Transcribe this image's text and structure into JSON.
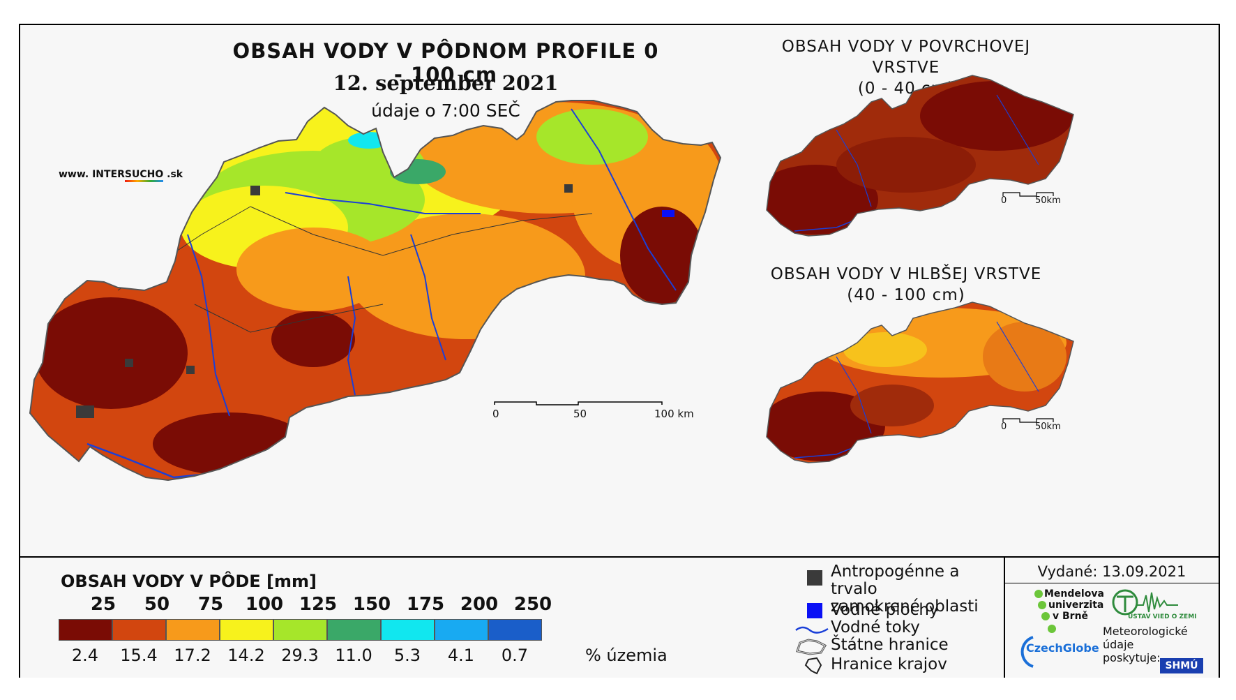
{
  "main_map": {
    "title": "OBSAH VODY V PÔDNOM PROFILE 0 - 100 cm",
    "date": "12. september 2021",
    "time": "údaje o 7:00 SEČ",
    "website": {
      "prefix": "www. INTER",
      "highlight": "SUCHO",
      "suffix": " .sk"
    },
    "scale": {
      "labels": [
        "0",
        "50",
        "100 km"
      ]
    }
  },
  "surface_map": {
    "title_line1": "OBSAH VODY V POVRCHOVEJ VRSTVE",
    "title_line2": "(0 - 40 cm)",
    "scale": {
      "labels": [
        "0",
        "50km"
      ]
    }
  },
  "deep_map": {
    "title_line1": "OBSAH VODY V HLBŠEJ VRSTVE",
    "title_line2": "(40 - 100 cm)",
    "scale": {
      "labels": [
        "0",
        "50km"
      ]
    }
  },
  "legend": {
    "title": "OBSAH VODY V PÔDE [mm]",
    "thresholds": [
      "25",
      "50",
      "75",
      "100",
      "125",
      "150",
      "175",
      "200",
      "250"
    ],
    "classes": [
      {
        "color": "#7a0c05",
        "percent": "2.4"
      },
      {
        "color": "#d2460f",
        "percent": "15.4"
      },
      {
        "color": "#f79a1b",
        "percent": "17.2"
      },
      {
        "color": "#f7f21c",
        "percent": "14.2"
      },
      {
        "color": "#a6e62a",
        "percent": "29.3"
      },
      {
        "color": "#3aa868",
        "percent": "11.0"
      },
      {
        "color": "#11e7ef",
        "percent": "5.3"
      },
      {
        "color": "#18aaf2",
        "percent": "4.1"
      },
      {
        "color": "#1a5ec9",
        "percent": "0.7"
      }
    ],
    "percent_unit": "% územia"
  },
  "symbols": {
    "anthropogenic_line1": "Antropogénne a trvalo",
    "anthropogenic_line2": "zamokrené oblasti",
    "water_bodies": "Vodné plochy",
    "water_courses": "Vodné toky",
    "state_border": "Štátne hranice",
    "region_border": "Hranice krajov"
  },
  "issued": {
    "text": "Vydané: 13.09.2021",
    "mendel_line1": "Mendelova",
    "mendel_line2": "univerzita",
    "mendel_line3": "v Brně",
    "czechglobe": "CzechGlobe",
    "ustav": "ÚSTAV VIED O ZEMI",
    "meteo_line1": "Meteorologické",
    "meteo_line2": "údaje",
    "meteo_line3": "poskytuje:",
    "shmu": "SHMÚ"
  },
  "colors": {
    "anthropogenic": "#3a3a3a",
    "water_body": "#0a10f5",
    "river": "#1a3fd8"
  }
}
